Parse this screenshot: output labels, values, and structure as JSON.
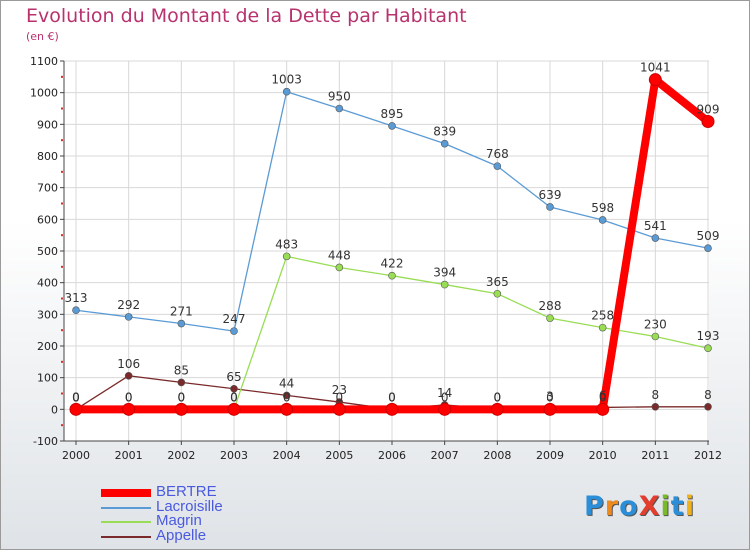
{
  "title": "Evolution du Montant de la Dette par Habitant",
  "subtitle": "(en €)",
  "brand": "ProXiti",
  "colors": {
    "background": "#ffffff",
    "title": "#b8326e",
    "legend_text": "#4a5ae0",
    "grid": "#d8d8d8"
  },
  "chart_data": {
    "type": "line",
    "title": "Evolution du Montant de la Dette par Habitant",
    "ylabel": "(en €)",
    "xlabel": "",
    "ylim": [
      -100,
      1100
    ],
    "yticks": [
      -100,
      0,
      100,
      200,
      300,
      400,
      500,
      600,
      700,
      800,
      900,
      1000,
      1100
    ],
    "categories": [
      "2000",
      "2001",
      "2002",
      "2003",
      "2004",
      "2005",
      "2006",
      "2007",
      "2008",
      "2009",
      "2010",
      "2011",
      "2012"
    ],
    "legend_position": "bottom-left",
    "series": [
      {
        "name": "BERTRE",
        "color": "#ff0000",
        "values": [
          0,
          0,
          0,
          0,
          0,
          0,
          0,
          0,
          0,
          0,
          0,
          1041,
          909
        ],
        "labels": [
          "0",
          "0",
          "0",
          "0",
          "0",
          "0",
          "0",
          "0",
          "0",
          "0",
          "0",
          "1041",
          "909"
        ]
      },
      {
        "name": "Lacroisille",
        "color": "#5b9bd5",
        "values": [
          313,
          292,
          271,
          247,
          1003,
          950,
          895,
          839,
          768,
          639,
          598,
          541,
          509
        ],
        "labels": [
          "313",
          "292",
          "271",
          "247",
          "1003",
          "950",
          "895",
          "839",
          "768",
          "639",
          "598",
          "541",
          "509"
        ]
      },
      {
        "name": "Magrin",
        "color": "#99dd55",
        "values": [
          0,
          0,
          0,
          0,
          483,
          448,
          422,
          394,
          365,
          288,
          258,
          230,
          193
        ],
        "labels": [
          "0",
          "0",
          "0",
          "0",
          "483",
          "448",
          "422",
          "394",
          "365",
          "288",
          "258",
          "230",
          "193"
        ]
      },
      {
        "name": "Appelle",
        "color": "#7a2a2a",
        "values": [
          0,
          106,
          85,
          65,
          44,
          23,
          0,
          14,
          0,
          3,
          6,
          8,
          8
        ],
        "labels": [
          "0",
          "106",
          "85",
          "65",
          "44",
          "23",
          "0",
          "14",
          "0",
          "3",
          "6",
          "8",
          "8"
        ]
      }
    ]
  }
}
